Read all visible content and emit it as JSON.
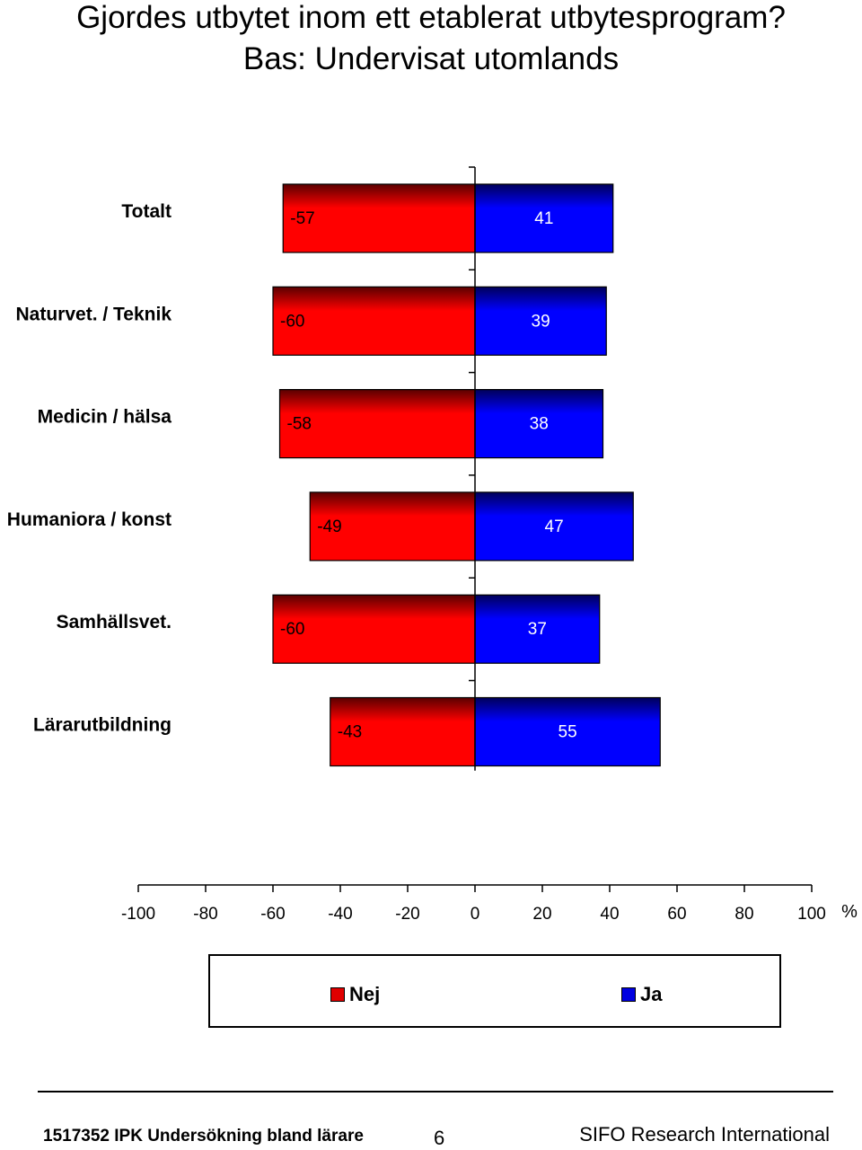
{
  "title": "Gjordes utbytet inom ett etablerat utbytesprogram?",
  "subtitle": "Bas: Undervisat utomlands",
  "colors": {
    "nej": "#e00000",
    "ja": "#0000e0",
    "nej_dark": "#600000",
    "ja_dark": "#000070"
  },
  "chart_data": {
    "type": "bar",
    "orientation": "horizontal-diverging",
    "categories": [
      "Totalt",
      "Naturvet. / Teknik",
      "Medicin / hälsa",
      "Humaniora / konst",
      "Samhällsvet.",
      "Lärarutbildning"
    ],
    "series": [
      {
        "name": "Nej",
        "values": [
          -57,
          -60,
          -58,
          -49,
          -60,
          -43
        ]
      },
      {
        "name": "Ja",
        "values": [
          41,
          39,
          38,
          47,
          37,
          55
        ]
      }
    ],
    "xlim": [
      -100,
      100
    ],
    "xticks": [
      -100,
      -80,
      -60,
      -40,
      -20,
      0,
      20,
      40,
      60,
      80,
      100
    ],
    "xunit": "%",
    "legend": "bottom",
    "grid": false
  },
  "legend": {
    "nej_label": "Nej",
    "ja_label": "Ja"
  },
  "footer": {
    "left": "1517352 IPK Undersökning bland lärare",
    "page": "6",
    "right": "SIFO Research International"
  }
}
